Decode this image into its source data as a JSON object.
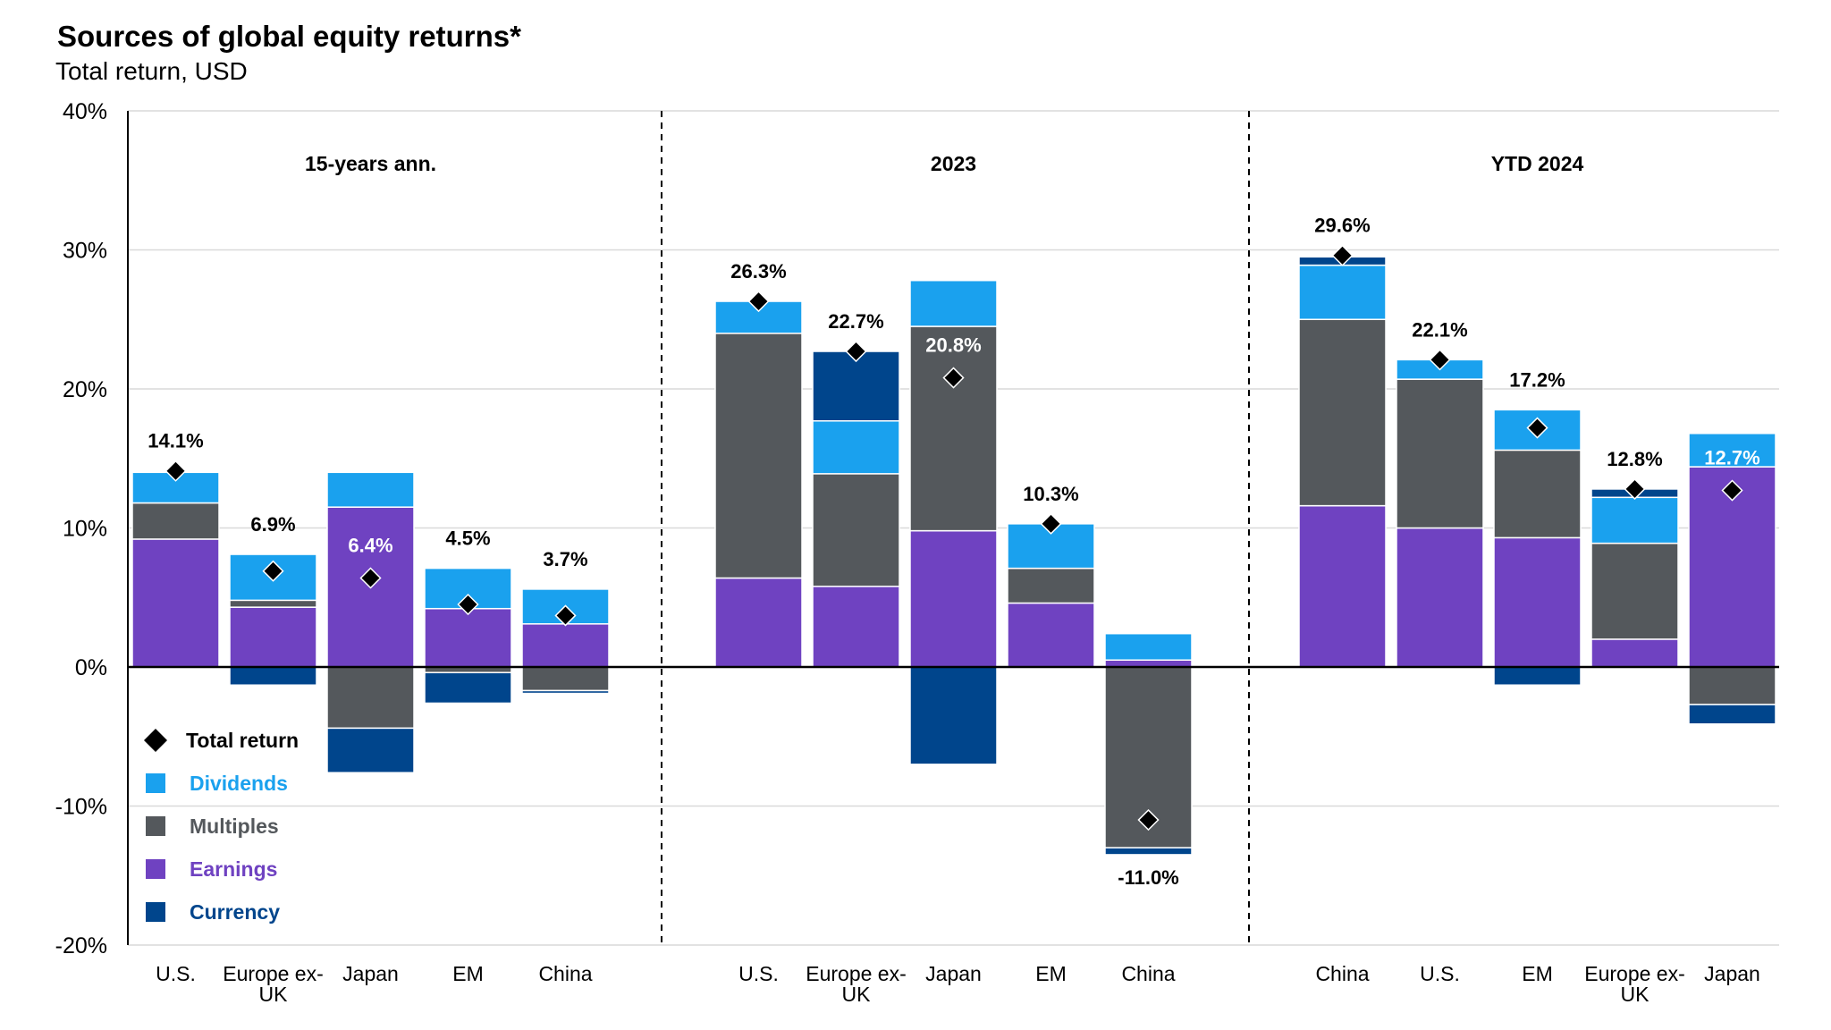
{
  "title": "Sources of global equity returns*",
  "subtitle": "Total return, USD",
  "chart_data": {
    "type": "bar",
    "stacked": true,
    "ylim": [
      -20,
      40
    ],
    "yticks": [
      40,
      30,
      20,
      10,
      0,
      -10,
      -20
    ],
    "ytick_labels": [
      "40%",
      "30%",
      "20%",
      "10%",
      "0%",
      "-10%",
      "-20%"
    ],
    "grid": true,
    "legend_position": "bottom-left",
    "components": [
      {
        "key": "earnings",
        "name": "Earnings",
        "color": "#6f42c1"
      },
      {
        "key": "multiples",
        "name": "Multiples",
        "color": "#54585c"
      },
      {
        "key": "dividends",
        "name": "Dividends",
        "color": "#1aa1ee"
      },
      {
        "key": "currency",
        "name": "Currency",
        "color": "#00458c"
      }
    ],
    "total_legend": "Total return",
    "groups": [
      {
        "name": "15-years ann.",
        "bars": [
          {
            "label": "U.S.",
            "earnings": 9.2,
            "multiples": 2.6,
            "dividends": 2.2,
            "currency": 0,
            "total": 14.1,
            "total_label": "14.1%"
          },
          {
            "label": "Europe ex-UK",
            "earnings": 4.3,
            "multiples": 0.5,
            "dividends": 3.3,
            "currency": -1.3,
            "total": 6.9,
            "total_label": "6.9%"
          },
          {
            "label": "Japan",
            "earnings": 11.5,
            "multiples": -4.4,
            "dividends": 2.5,
            "currency": -3.2,
            "total": 6.4,
            "total_label": "6.4%"
          },
          {
            "label": "EM",
            "earnings": 4.2,
            "multiples": -0.4,
            "dividends": 2.9,
            "currency": -2.2,
            "total": 4.5,
            "total_label": "4.5%"
          },
          {
            "label": "China",
            "earnings": 3.1,
            "multiples": -1.7,
            "dividends": 2.5,
            "currency": -0.2,
            "total": 3.7,
            "total_label": "3.7%"
          }
        ]
      },
      {
        "name": "2023",
        "bars": [
          {
            "label": "U.S.",
            "earnings": 6.4,
            "multiples": 17.6,
            "dividends": 2.3,
            "currency": 0,
            "total": 26.3,
            "total_label": "26.3%"
          },
          {
            "label": "Europe ex-UK",
            "earnings": 5.8,
            "multiples": 8.1,
            "dividends": 3.8,
            "currency": 5.0,
            "total": 22.7,
            "total_label": "22.7%"
          },
          {
            "label": "Japan",
            "earnings": 9.8,
            "multiples": 14.7,
            "dividends": 3.3,
            "currency": -7.0,
            "total": 20.8,
            "total_label": "20.8%"
          },
          {
            "label": "EM",
            "earnings": 4.6,
            "multiples": 2.5,
            "dividends": 3.2,
            "currency": 0,
            "total": 10.3,
            "total_label": "10.3%"
          },
          {
            "label": "China",
            "earnings": 0.5,
            "multiples": -13.0,
            "dividends": 1.9,
            "currency": -0.5,
            "total": -11.0,
            "total_label": "-11.0%"
          }
        ]
      },
      {
        "name": "YTD 2024",
        "bars": [
          {
            "label": "China",
            "earnings": 11.6,
            "multiples": 13.4,
            "dividends": 3.9,
            "currency": 0.6,
            "total": 29.6,
            "total_label": "29.6%"
          },
          {
            "label": "U.S.",
            "earnings": 10.0,
            "multiples": 10.7,
            "dividends": 1.4,
            "currency": 0,
            "total": 22.1,
            "total_label": "22.1%"
          },
          {
            "label": "EM",
            "earnings": 9.3,
            "multiples": 6.3,
            "dividends": 2.9,
            "currency": -1.3,
            "total": 17.2,
            "total_label": "17.2%"
          },
          {
            "label": "Europe ex-UK",
            "earnings": 2.0,
            "multiples": 6.9,
            "dividends": 3.3,
            "currency": 0.6,
            "total": 12.8,
            "total_label": "12.8%"
          },
          {
            "label": "Japan",
            "earnings": 14.4,
            "multiples": -2.7,
            "dividends": 2.4,
            "currency": -1.4,
            "total": 12.7,
            "total_label": "12.7%"
          }
        ]
      }
    ]
  }
}
